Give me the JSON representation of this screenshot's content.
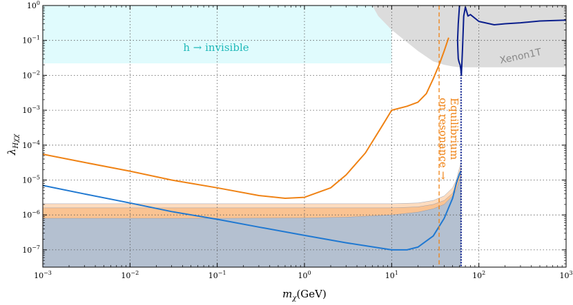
{
  "chart_data": {
    "type": "line",
    "xlabel_main": "m",
    "xlabel_sub": "χ",
    "xlabel_unit": "(GeV)",
    "ylabel_main": "λ",
    "ylabel_sub": "Hχχ",
    "xscale": "log",
    "yscale": "log",
    "xlim": [
      0.001,
      1000
    ],
    "ylim": [
      3.2e-08,
      1
    ],
    "grid": true,
    "x_ticks": [
      {
        "value": 0.001,
        "base": "10",
        "exp": "−3"
      },
      {
        "value": 0.01,
        "base": "10",
        "exp": "−2"
      },
      {
        "value": 0.1,
        "base": "10",
        "exp": "−1"
      },
      {
        "value": 1,
        "base": "10",
        "exp": "0"
      },
      {
        "value": 10,
        "base": "10",
        "exp": "1"
      },
      {
        "value": 100,
        "base": "10",
        "exp": "2"
      },
      {
        "value": 1000,
        "base": "10",
        "exp": "3"
      }
    ],
    "y_ticks": [
      {
        "value": 1e-07,
        "base": "10",
        "exp": "−7"
      },
      {
        "value": 1e-06,
        "base": "10",
        "exp": "−6"
      },
      {
        "value": 1e-05,
        "base": "10",
        "exp": "−5"
      },
      {
        "value": 0.0001,
        "base": "10",
        "exp": "−4"
      },
      {
        "value": 0.001,
        "base": "10",
        "exp": "−3"
      },
      {
        "value": 0.01,
        "base": "10",
        "exp": "−2"
      },
      {
        "value": 0.1,
        "base": "10",
        "exp": "−1"
      },
      {
        "value": 1,
        "base": "10",
        "exp": "0"
      }
    ],
    "series": [
      {
        "name": "orange",
        "color": "#ef8214",
        "x": [
          0.001,
          0.003,
          0.01,
          0.03,
          0.1,
          0.3,
          0.6,
          1,
          2,
          3,
          5,
          8,
          10,
          15,
          20,
          25,
          30,
          35,
          40,
          45
        ],
        "y": [
          5.5e-05,
          3.2e-05,
          1.8e-05,
          1e-05,
          6e-06,
          3.6e-06,
          3e-06,
          3.2e-06,
          6e-06,
          1.4e-05,
          6e-05,
          0.0004,
          0.001,
          0.0013,
          0.0017,
          0.003,
          0.008,
          0.02,
          0.05,
          0.12
        ]
      },
      {
        "name": "blue",
        "color": "#1f78d1",
        "x": [
          0.001,
          0.003,
          0.01,
          0.03,
          0.1,
          0.3,
          1,
          3,
          10,
          15,
          20,
          30,
          40,
          50,
          55,
          60,
          62
        ],
        "y": [
          7e-06,
          4e-06,
          2.2e-06,
          1.25e-06,
          7.5e-07,
          4.5e-07,
          2.6e-07,
          1.6e-07,
          1e-07,
          1e-07,
          1.2e-07,
          2.5e-07,
          8e-07,
          3e-06,
          8e-06,
          1.5e-05,
          1.8e-05
        ]
      },
      {
        "name": "navy",
        "color": "#0a1e8c",
        "x": [
          60,
          58,
          57,
          57.5,
          58,
          59,
          60,
          61,
          62,
          63,
          65,
          67,
          70,
          75,
          80,
          100,
          150,
          200,
          300,
          500,
          1000
        ],
        "y": [
          1.0,
          0.3,
          0.1,
          0.05,
          0.03,
          0.025,
          0.022,
          0.02,
          0.015,
          0.01,
          0.06,
          0.5,
          0.9,
          0.5,
          0.55,
          0.35,
          0.28,
          0.3,
          0.32,
          0.36,
          0.38
        ]
      }
    ],
    "bands": [
      {
        "name": "orange-band-outer",
        "color": "#fbbf8a",
        "opacity": 0.55,
        "x": [
          0.001,
          0.01,
          0.1,
          1,
          10,
          20,
          30,
          40,
          50,
          55,
          60,
          62
        ],
        "ylow": [
          7e-07,
          7e-07,
          7e-07,
          7e-07,
          7e-07,
          7e-07,
          7e-07,
          7e-07,
          7e-07,
          7e-07,
          7e-07,
          7e-07
        ],
        "yhigh": [
          2.1e-06,
          2.1e-06,
          2.1e-06,
          2.1e-06,
          2.1e-06,
          2.2e-06,
          2.6e-06,
          3.5e-06,
          6e-06,
          1e-05,
          2.2e-05,
          3e-05
        ]
      },
      {
        "name": "orange-band-inner",
        "color": "#f7a35c",
        "opacity": 0.45,
        "x": [
          0.001,
          0.01,
          0.1,
          1,
          10,
          20,
          30,
          40,
          50,
          55,
          60,
          62
        ],
        "ylow": [
          7e-07,
          7e-07,
          7e-07,
          7e-07,
          7e-07,
          7e-07,
          7e-07,
          7e-07,
          7e-07,
          7e-07,
          7e-07,
          7e-07
        ],
        "yhigh": [
          1.6e-06,
          1.6e-06,
          1.6e-06,
          1.6e-06,
          1.6e-06,
          1.7e-06,
          2e-06,
          2.6e-06,
          4.2e-06,
          7e-06,
          1.5e-05,
          2e-05
        ]
      },
      {
        "name": "slate-band",
        "color": "#b4c0d0",
        "opacity": 1,
        "x": [
          0.001,
          0.01,
          0.1,
          1,
          3,
          10,
          20,
          30,
          40,
          50,
          55,
          60,
          62
        ],
        "ylow": [
          3.2e-08,
          3.2e-08,
          3.2e-08,
          3.2e-08,
          3.2e-08,
          3.2e-08,
          3.2e-08,
          3.2e-08,
          3.2e-08,
          3.2e-08,
          3.2e-08,
          3.2e-08,
          3.2e-08
        ],
        "yhigh": [
          8e-07,
          8e-07,
          8e-07,
          8.2e-07,
          8.6e-07,
          1e-06,
          1.2e-06,
          1.5e-06,
          2e-06,
          3.5e-06,
          5e-06,
          1e-05,
          1.3e-05
        ]
      }
    ],
    "regions": [
      {
        "name": "h-invisible-region",
        "color": "#e0fbfd",
        "x": [
          0.001,
          10
        ],
        "y": [
          0.022,
          1
        ]
      },
      {
        "name": "xenon-region",
        "color": "#dcdcdc",
        "x": [
          6,
          7,
          10,
          20,
          30,
          40,
          50,
          60,
          80,
          100,
          1000
        ],
        "yhigh": [
          1,
          0.5,
          0.2,
          0.05,
          0.025,
          0.02,
          0.018,
          0.017,
          0.017,
          0.017,
          0.017
        ]
      }
    ],
    "vlines": [
      {
        "name": "equilibrium-resonance-line",
        "x": 35,
        "color": "#ef8214",
        "style": "dashed"
      },
      {
        "name": "resonance-dotted-line",
        "x": 62.5,
        "color": "#0a1e8c",
        "style": "dotted",
        "y_from": 3.2e-08,
        "y_to": 0.015
      }
    ],
    "annotations": {
      "h_invisible": "h → invisible",
      "xenon": "Xenon1T",
      "equilibrium_line1": "Equilibrium",
      "equilibrium_line2": "on resonance →"
    }
  }
}
